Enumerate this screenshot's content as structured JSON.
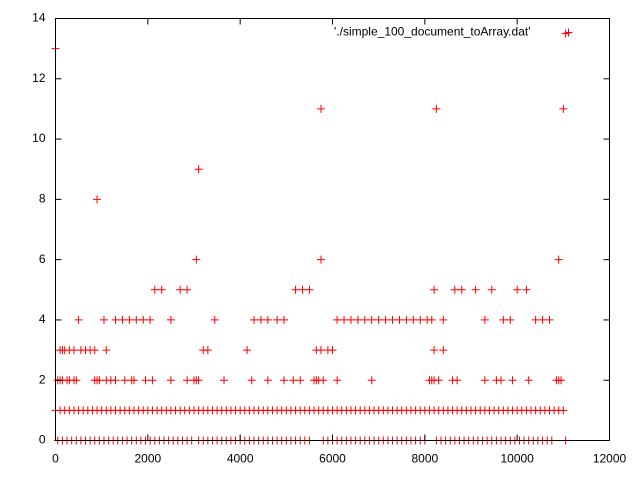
{
  "chart_data": {
    "type": "scatter",
    "xlim": [
      0,
      12000
    ],
    "xticks": [
      0,
      2000,
      4000,
      6000,
      8000,
      10000,
      12000
    ],
    "ylim": [
      0,
      14
    ],
    "yticks": [
      0,
      2,
      4,
      6,
      8,
      10,
      12,
      14
    ],
    "legend": "top-right",
    "series": [
      {
        "name": "'./simple_100_document_toArray.dat'",
        "color": "#ff0000",
        "x": [
          0,
          11050,
          5750,
          8250,
          11000,
          900,
          3100,
          3050,
          5750,
          10900,
          2150,
          2300,
          2700,
          2850,
          5200,
          5350,
          5500,
          8200,
          8650,
          8800,
          9100,
          9450,
          10000,
          10200,
          500,
          1050,
          1300,
          1450,
          1600,
          1750,
          1900,
          2050,
          2500,
          3450,
          4300,
          4450,
          4600,
          4800,
          4950,
          6100,
          6250,
          6400,
          6550,
          6700,
          6850,
          7000,
          7150,
          7300,
          7450,
          7600,
          7750,
          7900,
          8050,
          8150,
          8400,
          9300,
          9700,
          9850,
          10400,
          10550,
          10700,
          100,
          150,
          200,
          300,
          400,
          550,
          650,
          750,
          850,
          1100,
          3200,
          3300,
          4150,
          5650,
          5750,
          5900,
          6000,
          8200,
          8400,
          50,
          100,
          150,
          250,
          300,
          400,
          450,
          850,
          900,
          950,
          1100,
          1200,
          1300,
          1500,
          1650,
          1700,
          1950,
          2100,
          2500,
          2850,
          3000,
          3050,
          3100,
          3650,
          4250,
          4600,
          4950,
          5150,
          5300,
          5600,
          5650,
          5700,
          5800,
          6100,
          6850,
          8100,
          8150,
          8200,
          8300,
          8600,
          8700,
          9300,
          9550,
          9650,
          9900,
          10250,
          10850,
          10900,
          10950,
          0,
          100,
          200,
          300,
          400,
          500,
          600,
          700,
          800,
          900,
          1000,
          1100,
          1200,
          1300,
          1400,
          1500,
          1600,
          1700,
          1800,
          1900,
          2000,
          2100,
          2200,
          2300,
          2400,
          2500,
          2600,
          2700,
          2800,
          2900,
          3000,
          3100,
          3200,
          3300,
          3400,
          3500,
          3600,
          3700,
          3800,
          3900,
          4000,
          4100,
          4200,
          4300,
          4400,
          4500,
          4600,
          4700,
          4800,
          4900,
          5000,
          5100,
          5200,
          5300,
          5400,
          5500,
          5600,
          5700,
          5800,
          5900,
          6000,
          6100,
          6200,
          6300,
          6400,
          6500,
          6600,
          6700,
          6800,
          6900,
          7000,
          7100,
          7200,
          7300,
          7400,
          7500,
          7600,
          7700,
          7800,
          7900,
          8000,
          8100,
          8200,
          8300,
          8400,
          8500,
          8600,
          8700,
          8800,
          8900,
          9000,
          9100,
          9200,
          9300,
          9400,
          9500,
          9600,
          9700,
          9800,
          9900,
          10000,
          10100,
          10200,
          10300,
          10400,
          10500,
          10600,
          10700,
          10800,
          10900,
          11000,
          50,
          150,
          250,
          350,
          450,
          550,
          650,
          750,
          850,
          950,
          1050,
          1150,
          1250,
          1350,
          1450,
          1550,
          1650,
          1750,
          1850,
          1950,
          2050,
          2150,
          2250,
          2350,
          2450,
          2550,
          2650,
          2750,
          2850,
          2950,
          3100,
          3200,
          3300,
          3400,
          3500,
          3600,
          3700,
          3800,
          3900,
          4000,
          4100,
          4200,
          4300,
          4400,
          4500,
          4600,
          4700,
          4800,
          4900,
          5000,
          5100,
          5200,
          5300,
          5400,
          5500,
          5800,
          5900,
          6000,
          6100,
          6200,
          6300,
          6400,
          6500,
          6600,
          6700,
          6800,
          6900,
          7000,
          7100,
          7200,
          7300,
          7400,
          7500,
          7600,
          7700,
          7800,
          7900,
          8000,
          8250,
          8350,
          8450,
          8550,
          8650,
          8750,
          8850,
          8950,
          9050,
          9150,
          9250,
          9350,
          9450,
          9550,
          9650,
          9750,
          9850,
          9950,
          10050,
          10150,
          10250,
          10350,
          10450,
          10550,
          10650,
          10750,
          11050
        ],
        "values": [
          13,
          13.5,
          11,
          11,
          11,
          8,
          9,
          6,
          6,
          6,
          5,
          5,
          5,
          5,
          5,
          5,
          5,
          5,
          5,
          5,
          5,
          5,
          5,
          5,
          4,
          4,
          4,
          4,
          4,
          4,
          4,
          4,
          4,
          4,
          4,
          4,
          4,
          4,
          4,
          4,
          4,
          4,
          4,
          4,
          4,
          4,
          4,
          4,
          4,
          4,
          4,
          4,
          4,
          4,
          4,
          4,
          4,
          4,
          4,
          4,
          4,
          3,
          3,
          3,
          3,
          3,
          3,
          3,
          3,
          3,
          3,
          3,
          3,
          3,
          3,
          3,
          3,
          3,
          3,
          3,
          2,
          2,
          2,
          2,
          2,
          2,
          2,
          2,
          2,
          2,
          2,
          2,
          2,
          2,
          2,
          2,
          2,
          2,
          2,
          2,
          2,
          2,
          2,
          2,
          2,
          2,
          2,
          2,
          2,
          2,
          2,
          2,
          2,
          2,
          2,
          2,
          2,
          2,
          2,
          2,
          2,
          2,
          2,
          2,
          2,
          2,
          2,
          2,
          2,
          1,
          1,
          1,
          1,
          1,
          1,
          1,
          1,
          1,
          1,
          1,
          1,
          1,
          1,
          1,
          1,
          1,
          1,
          1,
          1,
          1,
          1,
          1,
          1,
          1,
          1,
          1,
          1,
          1,
          1,
          1,
          1,
          1,
          1,
          1,
          1,
          1,
          1,
          1,
          1,
          1,
          1,
          1,
          1,
          1,
          1,
          1,
          1,
          1,
          1,
          1,
          1,
          1,
          1,
          1,
          1,
          1,
          1,
          1,
          1,
          1,
          1,
          1,
          1,
          1,
          1,
          1,
          1,
          1,
          1,
          1,
          1,
          1,
          1,
          1,
          1,
          1,
          1,
          1,
          1,
          1,
          1,
          1,
          1,
          1,
          1,
          1,
          1,
          1,
          1,
          1,
          1,
          1,
          1,
          1,
          1,
          1,
          1,
          1,
          1,
          1,
          1,
          1,
          1,
          1,
          1,
          1,
          1,
          1,
          1,
          1,
          0,
          0,
          0,
          0,
          0,
          0,
          0,
          0,
          0,
          0,
          0,
          0,
          0,
          0,
          0,
          0,
          0,
          0,
          0,
          0,
          0,
          0,
          0,
          0,
          0,
          0,
          0,
          0,
          0,
          0,
          0,
          0,
          0,
          0,
          0,
          0,
          0,
          0,
          0,
          0,
          0,
          0,
          0,
          0,
          0,
          0,
          0,
          0,
          0,
          0,
          0,
          0,
          0,
          0,
          0,
          0,
          0,
          0,
          0,
          0,
          0,
          0,
          0,
          0,
          0,
          0,
          0,
          0,
          0,
          0,
          0,
          0,
          0,
          0,
          0,
          0,
          0,
          0,
          0,
          0,
          0,
          0,
          0,
          0,
          0,
          0,
          0,
          0,
          0,
          0,
          0,
          0,
          0,
          0,
          0,
          0,
          0,
          0,
          0,
          0,
          0,
          0,
          0,
          0,
          0
        ]
      }
    ]
  }
}
